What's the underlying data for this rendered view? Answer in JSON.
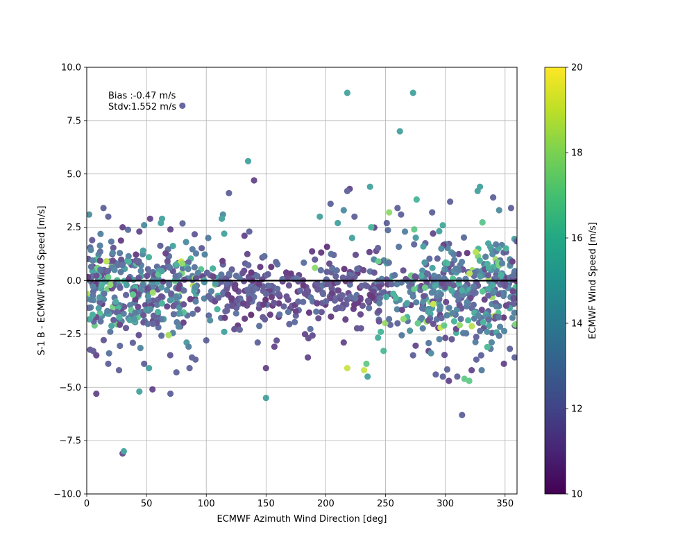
{
  "chart_data": {
    "type": "scatter",
    "xlabel": "ECMWF Azimuth Wind Direction [deg]",
    "ylabel": "S-1 B - ECMWF Wind Speed [m/s]",
    "xlim": [
      0,
      360
    ],
    "ylim": [
      -10,
      10
    ],
    "xticks": [
      0,
      50,
      100,
      150,
      200,
      250,
      300,
      350
    ],
    "yticks": [
      -10.0,
      -7.5,
      -5.0,
      -2.5,
      0.0,
      2.5,
      5.0,
      7.5,
      10.0
    ],
    "xtick_labels": [
      "0",
      "50",
      "100",
      "150",
      "200",
      "250",
      "300",
      "350"
    ],
    "ytick_labels": [
      "−10.0",
      "−7.5",
      "−5.0",
      "−2.5",
      "0.0",
      "2.5",
      "5.0",
      "7.5",
      "10.0"
    ],
    "grid": true,
    "zero_line": 0,
    "annotation": [
      "Bias :-0.47 m/s",
      "Stdv:1.552 m/s"
    ],
    "colorbar": {
      "label": "ECMWF Wind Speed [m/s]",
      "range": [
        10,
        20
      ],
      "ticks": [
        10,
        12,
        14,
        16,
        18,
        20
      ],
      "colormap": "viridis"
    },
    "colors": {
      "low": "#440154",
      "mid": "#21918c",
      "high": "#fde725"
    },
    "points": [
      [
        8,
        -5.3,
        11
      ],
      [
        30,
        -8.1,
        11
      ],
      [
        31,
        -8.0,
        15
      ],
      [
        80,
        8.2,
        12
      ],
      [
        218,
        8.8,
        15
      ],
      [
        273,
        8.8,
        15
      ],
      [
        262,
        7.0,
        15
      ],
      [
        135,
        5.6,
        15
      ],
      [
        140,
        4.7,
        11
      ],
      [
        119,
        4.1,
        12
      ],
      [
        237,
        4.4,
        15
      ],
      [
        220,
        4.3,
        11
      ],
      [
        218,
        4.2,
        12
      ],
      [
        327,
        4.2,
        15
      ],
      [
        329,
        4.4,
        15
      ],
      [
        340,
        3.9,
        12
      ],
      [
        204,
        3.6,
        12
      ],
      [
        304,
        3.7,
        12
      ],
      [
        2,
        3.1,
        14
      ],
      [
        14,
        3.4,
        12
      ],
      [
        18,
        3.0,
        12
      ],
      [
        53,
        2.9,
        11
      ],
      [
        63,
        2.9,
        15
      ],
      [
        114,
        3.1,
        14
      ],
      [
        113,
        2.9,
        15
      ],
      [
        195,
        3.0,
        15
      ],
      [
        215,
        3.3,
        14
      ],
      [
        224,
        3.0,
        12
      ],
      [
        253,
        3.2,
        18
      ],
      [
        260,
        3.4,
        12
      ],
      [
        263,
        3.1,
        12
      ],
      [
        276,
        3.8,
        16
      ],
      [
        289,
        3.2,
        12
      ],
      [
        345,
        3.3,
        14
      ],
      [
        355,
        3.4,
        12
      ],
      [
        210,
        2.7,
        15
      ],
      [
        222,
        2.0,
        15
      ],
      [
        238,
        2.5,
        16
      ],
      [
        251,
        2.7,
        12
      ],
      [
        274,
        2.4,
        17
      ],
      [
        132,
        2.1,
        11
      ],
      [
        136,
        2.3,
        12
      ],
      [
        115,
        2.2,
        15
      ],
      [
        30,
        2.5,
        11
      ],
      [
        62,
        2.7,
        15
      ],
      [
        70,
        2.4,
        11
      ],
      [
        44,
        2.3,
        11
      ],
      [
        48,
        2.6,
        14
      ],
      [
        8,
        -3.5,
        11
      ],
      [
        18,
        -3.9,
        12
      ],
      [
        27,
        -4.2,
        12
      ],
      [
        44,
        -5.2,
        15
      ],
      [
        48,
        -3.9,
        12
      ],
      [
        52,
        -4.1,
        15
      ],
      [
        55,
        -5.1,
        11
      ],
      [
        70,
        -5.3,
        12
      ],
      [
        75,
        -4.3,
        12
      ],
      [
        86,
        -4.1,
        12
      ],
      [
        88,
        -3.6,
        12
      ],
      [
        91,
        -3.7,
        12
      ],
      [
        100,
        -2.8,
        12
      ],
      [
        115,
        -2.4,
        15
      ],
      [
        128,
        -2.3,
        12
      ],
      [
        143,
        -2.9,
        12
      ],
      [
        150,
        -4.1,
        11
      ],
      [
        150,
        -5.5,
        15
      ],
      [
        157,
        -3.1,
        11
      ],
      [
        185,
        -3.6,
        11
      ],
      [
        215,
        -2.9,
        11
      ],
      [
        218,
        -4.1,
        19
      ],
      [
        232,
        -4.2,
        19
      ],
      [
        234,
        -3.9,
        17
      ],
      [
        235,
        -4.5,
        15
      ],
      [
        246,
        -2.4,
        16
      ],
      [
        260,
        -2.0,
        12
      ],
      [
        265,
        -1.8,
        18
      ],
      [
        273,
        -3.5,
        12
      ],
      [
        277,
        -2.0,
        17
      ],
      [
        286,
        -3.3,
        11
      ],
      [
        288,
        -3.4,
        14
      ],
      [
        292,
        -4.4,
        12
      ],
      [
        298,
        -4.5,
        12
      ],
      [
        303,
        -4.7,
        11
      ],
      [
        310,
        -4.5,
        12
      ],
      [
        314,
        -6.3,
        12
      ],
      [
        316,
        -4.6,
        17
      ],
      [
        320,
        -4.7,
        17
      ],
      [
        322,
        -4.2,
        11
      ],
      [
        326,
        -3.7,
        12
      ],
      [
        330,
        -3.5,
        12
      ],
      [
        335,
        -2.4,
        14
      ],
      [
        349,
        -3.9,
        11
      ],
      [
        354,
        -3.2,
        12
      ],
      [
        358,
        -3.6,
        12
      ],
      [
        79,
        0.9,
        19
      ],
      [
        80,
        0.8,
        18
      ],
      [
        191,
        0.6,
        18
      ],
      [
        244,
        0.9,
        17
      ],
      [
        290,
        -1.1,
        19
      ],
      [
        296,
        -2.2,
        19
      ],
      [
        299,
        -2.1,
        17
      ],
      [
        274,
        -0.4,
        17
      ]
    ],
    "random_fill": {
      "count": 1050,
      "seed": 12345
    }
  }
}
